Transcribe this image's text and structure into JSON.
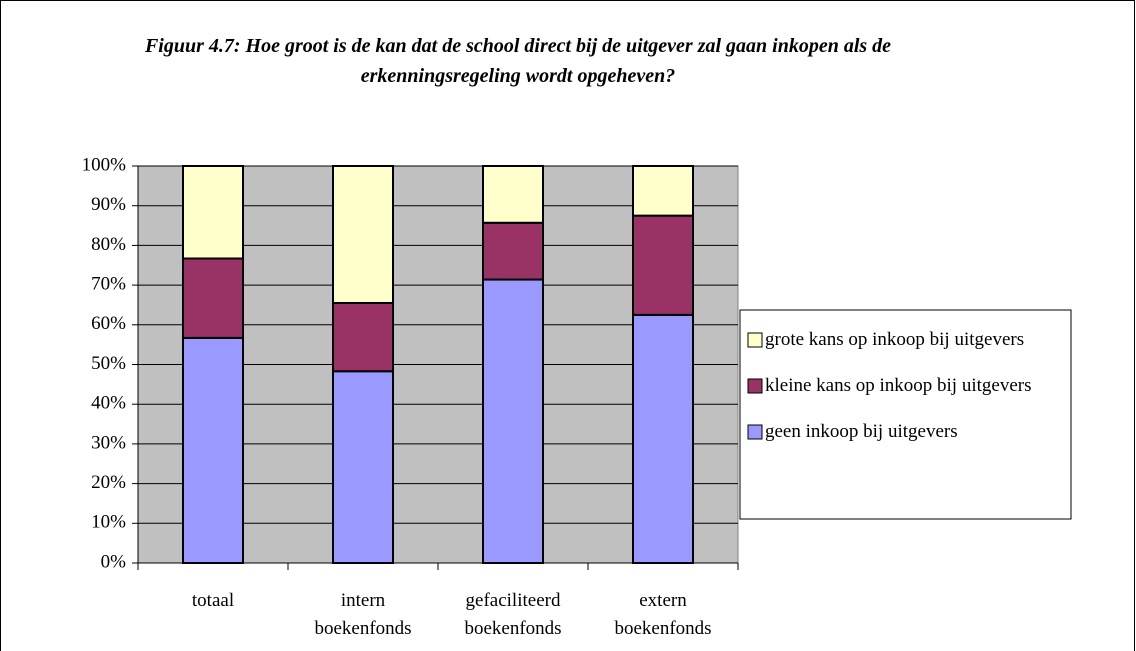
{
  "chart_data": {
    "type": "stacked_bar",
    "title": "Figuur 4.7: Hoe groot is de kan dat de school direct bij de uitgever zal gaan inkopen als de erkenningsregeling wordt opgeheven?",
    "categories": [
      "totaal",
      "intern boekenfonds",
      "gefaciliteerd boekenfonds",
      "extern boekenfonds"
    ],
    "series": [
      {
        "name": "geen inkoop bij uitgevers",
        "color": "#9999ff",
        "values": [
          56.7,
          48.3,
          71.4,
          62.5
        ]
      },
      {
        "name": "kleine kans op inkoop bij uitgevers",
        "color": "#993366",
        "values": [
          20,
          17.2,
          14.3,
          25
        ]
      },
      {
        "name": "grote kans op inkoop bij uitgevers",
        "color": "#ffffcc",
        "values": [
          23.3,
          34.5,
          14.3,
          12.5
        ]
      }
    ],
    "ylim": [
      0,
      100
    ],
    "yticks": [
      {
        "value": 0,
        "label": "0%"
      },
      {
        "value": 10,
        "label": "10%"
      },
      {
        "value": 20,
        "label": "20%"
      },
      {
        "value": 30,
        "label": "30%"
      },
      {
        "value": 40,
        "label": "40%"
      },
      {
        "value": 50,
        "label": "50%"
      },
      {
        "value": 60,
        "label": "60%"
      },
      {
        "value": 70,
        "label": "70%"
      },
      {
        "value": 80,
        "label": "80%"
      },
      {
        "value": 90,
        "label": "90%"
      },
      {
        "value": 100,
        "label": "100%"
      }
    ],
    "grid": true,
    "plot_background": "#c0c0c0",
    "legend": "right"
  }
}
